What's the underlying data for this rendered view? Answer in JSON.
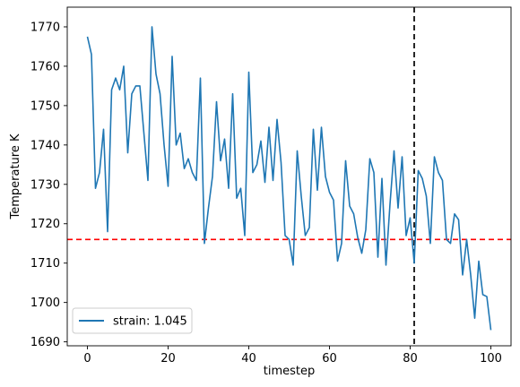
{
  "chart_data": {
    "type": "line",
    "title": "",
    "xlabel": "timestep",
    "ylabel": "Temperature K",
    "xlim": [
      -5,
      105
    ],
    "ylim": [
      1689,
      1775
    ],
    "xticks": [
      0,
      20,
      40,
      60,
      80,
      100
    ],
    "yticks": [
      1690,
      1700,
      1710,
      1720,
      1730,
      1740,
      1750,
      1760,
      1770
    ],
    "grid": false,
    "legend_position": "lower-left",
    "series": [
      {
        "name": "strain: 1.045",
        "color": "#1f77b4",
        "x": [
          0,
          1,
          2,
          3,
          4,
          5,
          6,
          7,
          8,
          9,
          10,
          11,
          12,
          13,
          14,
          15,
          16,
          17,
          18,
          19,
          20,
          21,
          22,
          23,
          24,
          25,
          26,
          27,
          28,
          29,
          30,
          31,
          32,
          33,
          34,
          35,
          36,
          37,
          38,
          39,
          40,
          41,
          42,
          43,
          44,
          45,
          46,
          47,
          48,
          49,
          50,
          51,
          52,
          53,
          54,
          55,
          56,
          57,
          58,
          59,
          60,
          61,
          62,
          63,
          64,
          65,
          66,
          67,
          68,
          69,
          70,
          71,
          72,
          73,
          74,
          75,
          76,
          77,
          78,
          79,
          80,
          81,
          82,
          83,
          84,
          85,
          86,
          87,
          88,
          89,
          90,
          91,
          92,
          93,
          94,
          95,
          96,
          97,
          98,
          99,
          100
        ],
        "y": [
          1767.5,
          1763,
          1729,
          1733,
          1744,
          1718,
          1754,
          1757,
          1754,
          1760,
          1738,
          1753,
          1755,
          1755,
          1743,
          1731,
          1770,
          1758,
          1753,
          1740,
          1729.5,
          1762.5,
          1740,
          1743,
          1734,
          1736.5,
          1733,
          1731,
          1757,
          1715,
          1724,
          1732,
          1751,
          1736,
          1741.5,
          1729,
          1753,
          1726.5,
          1729,
          1717,
          1758.5,
          1733,
          1735,
          1741,
          1730.5,
          1744.5,
          1731,
          1746.5,
          1735.5,
          1717,
          1716,
          1709.5,
          1738.5,
          1727,
          1717,
          1719,
          1744,
          1728.5,
          1744.5,
          1732,
          1728,
          1726,
          1710.5,
          1715,
          1736,
          1724.5,
          1722.5,
          1716.5,
          1712.5,
          1718.5,
          1736.5,
          1733,
          1711.5,
          1731.5,
          1709.5,
          1725,
          1738.5,
          1724,
          1737,
          1717,
          1721.5,
          1710,
          1733.5,
          1731.5,
          1727,
          1715,
          1737,
          1733,
          1731,
          1716,
          1715,
          1722.5,
          1721,
          1707,
          1716,
          1707,
          1696,
          1710.5,
          1702,
          1701.5,
          1693
        ]
      }
    ],
    "reference_lines": [
      {
        "orientation": "horizontal",
        "value": 1716,
        "color": "#ff0000",
        "style": "dashed"
      },
      {
        "orientation": "vertical",
        "value": 81,
        "color": "#000000",
        "style": "dashed"
      }
    ]
  }
}
